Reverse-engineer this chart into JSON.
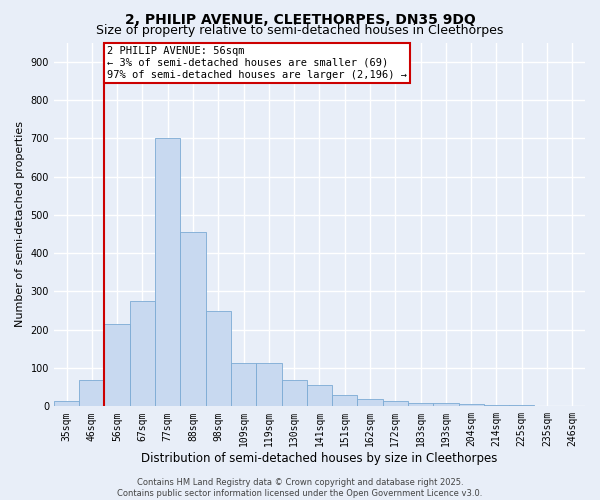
{
  "title": "2, PHILIP AVENUE, CLEETHORPES, DN35 9DQ",
  "subtitle": "Size of property relative to semi-detached houses in Cleethorpes",
  "xlabel": "Distribution of semi-detached houses by size in Cleethorpes",
  "ylabel": "Number of semi-detached properties",
  "categories": [
    "35sqm",
    "46sqm",
    "56sqm",
    "67sqm",
    "77sqm",
    "88sqm",
    "98sqm",
    "109sqm",
    "119sqm",
    "130sqm",
    "141sqm",
    "151sqm",
    "162sqm",
    "172sqm",
    "183sqm",
    "193sqm",
    "204sqm",
    "214sqm",
    "225sqm",
    "235sqm",
    "246sqm"
  ],
  "values": [
    15,
    70,
    215,
    275,
    700,
    455,
    248,
    113,
    113,
    68,
    55,
    30,
    18,
    15,
    10,
    10,
    6,
    3,
    3,
    2,
    2
  ],
  "bar_color": "#c8d9f0",
  "bar_edgecolor": "#7baad4",
  "vline_color": "#cc0000",
  "vline_x_index": 2,
  "annotation_text": "2 PHILIP AVENUE: 56sqm\n← 3% of semi-detached houses are smaller (69)\n97% of semi-detached houses are larger (2,196) →",
  "annotation_box_edgecolor": "#cc0000",
  "ylim": [
    0,
    950
  ],
  "yticks": [
    0,
    100,
    200,
    300,
    400,
    500,
    600,
    700,
    800,
    900
  ],
  "background_color": "#e8eef8",
  "grid_color": "#ffffff",
  "footer": "Contains HM Land Registry data © Crown copyright and database right 2025.\nContains public sector information licensed under the Open Government Licence v3.0.",
  "title_fontsize": 10,
  "subtitle_fontsize": 9,
  "xlabel_fontsize": 8.5,
  "ylabel_fontsize": 8,
  "tick_fontsize": 7,
  "annotation_fontsize": 7.5,
  "footer_fontsize": 6
}
